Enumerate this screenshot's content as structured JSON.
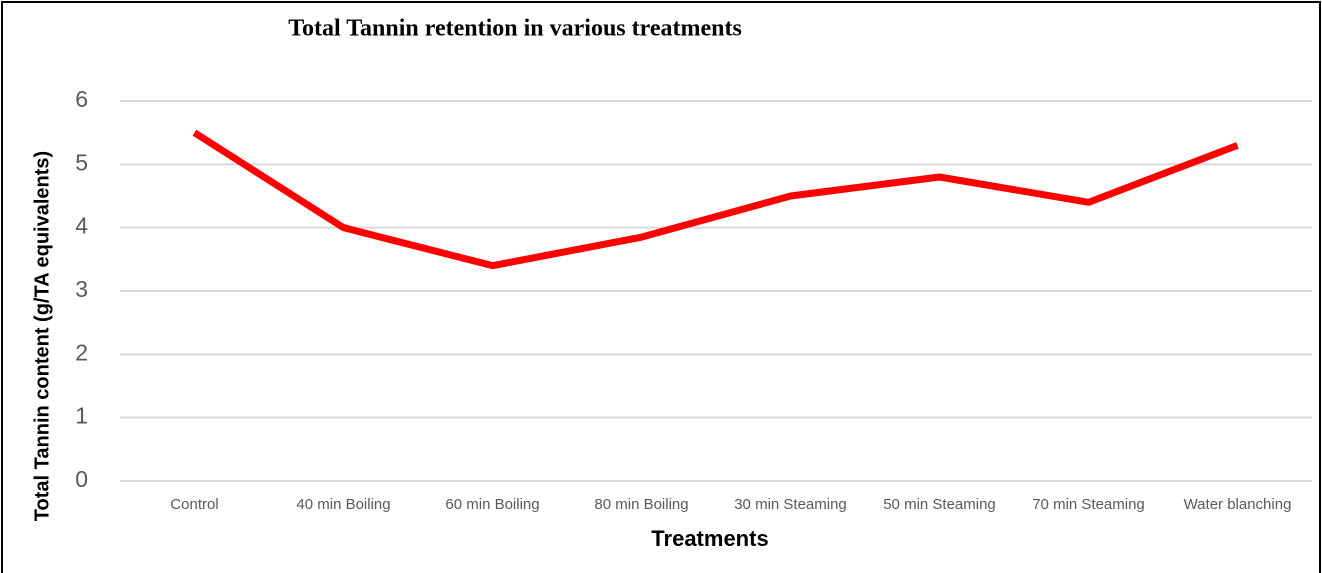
{
  "chart_data": {
    "type": "line",
    "title": "Total Tannin retention in various treatments",
    "y_label": "Total Tannin content  (g/TA equivalents)",
    "x_label": "Treatments",
    "categories": [
      "Control",
      "40 min Boiling",
      "60 min Boiling",
      "80 min Boiling",
      "30 min Steaming",
      "50 min Steaming",
      "70 min Steaming",
      "Water blanching"
    ],
    "values": [
      5.5,
      4.0,
      3.4,
      3.85,
      4.5,
      4.8,
      4.4,
      5.3
    ],
    "color": "#ff0000",
    "ylim": [
      0,
      6
    ],
    "yticks": [
      0,
      1,
      2,
      3,
      4,
      5,
      6
    ],
    "grid": true
  }
}
